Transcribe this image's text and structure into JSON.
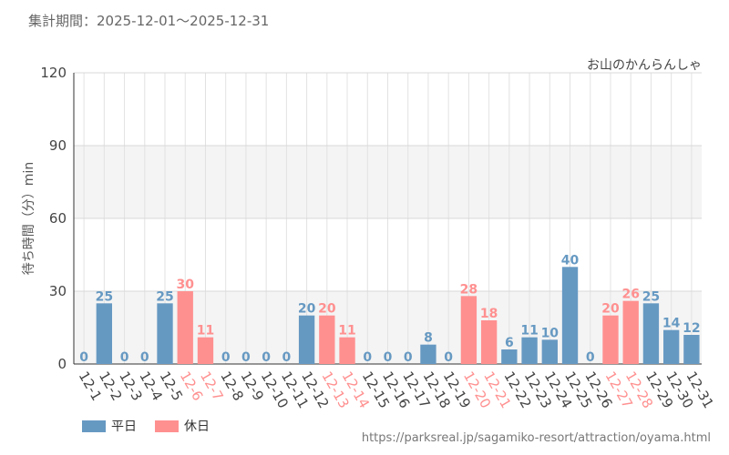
{
  "header": {
    "period_label": "集計期間：2025-12-01〜2025-12-31",
    "attraction_name": "お山のかんらんしゃ"
  },
  "legend": {
    "weekday_label": "平日",
    "holiday_label": "休日"
  },
  "footer": {
    "source_url": "https://parksreal.jp/sagamiko-resort/attraction/oyama.html"
  },
  "colors": {
    "weekday": "#6699c2",
    "holiday": "#ff9090"
  },
  "chart_data": {
    "type": "bar",
    "title": "お山のかんらんしゃ",
    "xlabel": "",
    "ylabel": "待ち時間（分）min",
    "ylim": [
      0,
      120
    ],
    "yticks": [
      0,
      30,
      60,
      90,
      120
    ],
    "categories": [
      "12-1",
      "12-2",
      "12-3",
      "12-4",
      "12-5",
      "12-6",
      "12-7",
      "12-8",
      "12-9",
      "12-10",
      "12-11",
      "12-12",
      "12-13",
      "12-14",
      "12-15",
      "12-16",
      "12-17",
      "12-18",
      "12-19",
      "12-20",
      "12-21",
      "12-22",
      "12-23",
      "12-24",
      "12-25",
      "12-26",
      "12-27",
      "12-28",
      "12-29",
      "12-30",
      "12-31"
    ],
    "values": [
      0,
      25,
      0,
      0,
      25,
      30,
      11,
      0,
      0,
      0,
      0,
      20,
      20,
      11,
      0,
      0,
      0,
      8,
      0,
      28,
      18,
      6,
      11,
      10,
      40,
      0,
      20,
      26,
      25,
      14,
      12
    ],
    "day_type": [
      "weekday",
      "weekday",
      "weekday",
      "weekday",
      "weekday",
      "holiday",
      "holiday",
      "weekday",
      "weekday",
      "weekday",
      "weekday",
      "weekday",
      "holiday",
      "holiday",
      "weekday",
      "weekday",
      "weekday",
      "weekday",
      "weekday",
      "holiday",
      "holiday",
      "weekday",
      "weekday",
      "weekday",
      "weekday",
      "weekday",
      "holiday",
      "holiday",
      "weekday",
      "weekday",
      "weekday"
    ],
    "legend": [
      {
        "name": "平日",
        "key": "weekday"
      },
      {
        "name": "休日",
        "key": "holiday"
      }
    ]
  }
}
